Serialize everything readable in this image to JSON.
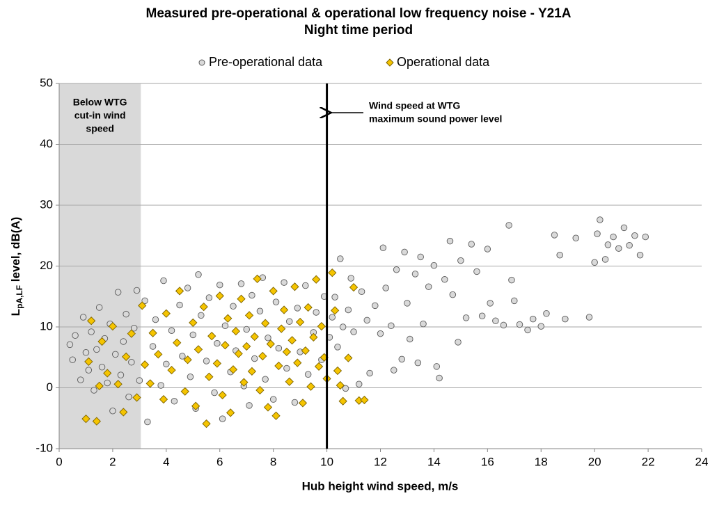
{
  "chart_data": {
    "type": "scatter",
    "title": "Measured pre-operational & operational low frequency noise - Y21A",
    "subtitle": "Night time period",
    "x_label": "Hub height wind speed, m/s",
    "y_label": {
      "main": "L",
      "sub": "pA,LF",
      "rest": " level, dB(A)"
    },
    "xlim": [
      0,
      24
    ],
    "xticks": [
      0,
      2,
      4,
      6,
      8,
      10,
      12,
      14,
      16,
      18,
      20,
      22,
      24
    ],
    "ylim": [
      -10,
      50
    ],
    "yticks": [
      -10,
      0,
      10,
      20,
      30,
      40,
      50
    ],
    "grid": true,
    "legend": "top",
    "shade_x": [
      0,
      3.05
    ],
    "shade_label": [
      "Below WTG",
      "cut-in wind",
      "speed"
    ],
    "vline_x": 10,
    "vline_label": [
      "Wind speed at WTG",
      "maximum sound power level"
    ],
    "series": [
      {
        "name": "Pre-operational data",
        "marker": "circle",
        "color": "#d9d9d9",
        "edge": "#595959",
        "x": [
          0.4,
          0.5,
          0.6,
          0.8,
          0.9,
          1.0,
          1.1,
          1.2,
          1.3,
          1.4,
          1.5,
          1.6,
          1.7,
          1.8,
          1.9,
          2.0,
          2.1,
          2.2,
          2.3,
          2.4,
          2.5,
          2.6,
          2.7,
          2.8,
          2.9,
          3.0,
          3.2,
          3.3,
          3.5,
          3.6,
          3.8,
          3.9,
          4.0,
          4.2,
          4.3,
          4.5,
          4.6,
          4.8,
          4.9,
          5.0,
          5.1,
          5.2,
          5.3,
          5.5,
          5.6,
          5.8,
          5.9,
          6.0,
          6.1,
          6.2,
          6.4,
          6.5,
          6.6,
          6.8,
          6.9,
          7.0,
          7.1,
          7.2,
          7.3,
          7.5,
          7.6,
          7.7,
          7.8,
          8.0,
          8.1,
          8.2,
          8.4,
          8.5,
          8.6,
          8.8,
          8.9,
          9.0,
          9.2,
          9.3,
          9.5,
          9.6,
          9.8,
          9.9,
          10.1,
          10.2,
          10.3,
          10.4,
          10.5,
          10.6,
          10.7,
          10.8,
          10.9,
          11.0,
          11.2,
          11.3,
          11.5,
          11.6,
          11.8,
          12.0,
          12.1,
          12.2,
          12.4,
          12.5,
          12.6,
          12.8,
          12.9,
          13.0,
          13.1,
          13.3,
          13.4,
          13.5,
          13.6,
          13.8,
          14.0,
          14.1,
          14.2,
          14.4,
          14.6,
          14.7,
          14.9,
          15.0,
          15.2,
          15.4,
          15.6,
          15.8,
          16.0,
          16.1,
          16.3,
          16.6,
          16.8,
          16.9,
          17.0,
          17.2,
          17.5,
          17.7,
          18.0,
          18.2,
          18.5,
          18.7,
          18.9,
          19.3,
          19.8,
          20.0,
          20.1,
          20.2,
          20.4,
          20.5,
          20.7,
          20.9,
          21.1,
          21.3,
          21.5,
          21.7,
          21.9
        ],
        "values": [
          7.1,
          4.6,
          8.6,
          1.3,
          11.6,
          5.8,
          2.9,
          9.2,
          -0.4,
          6.3,
          13.2,
          3.4,
          8.1,
          0.8,
          10.5,
          -3.8,
          5.5,
          15.7,
          2.1,
          7.6,
          12.1,
          -1.5,
          4.2,
          9.8,
          16.0,
          1.2,
          14.3,
          -5.6,
          6.8,
          11.2,
          0.4,
          17.6,
          3.9,
          9.4,
          -2.2,
          13.6,
          5.2,
          16.4,
          1.8,
          8.7,
          -3.4,
          18.6,
          11.9,
          4.4,
          14.8,
          -0.8,
          7.3,
          16.9,
          -5.1,
          10.2,
          2.6,
          13.4,
          6.1,
          17.1,
          0.3,
          9.6,
          -2.9,
          15.2,
          4.8,
          12.6,
          18.1,
          1.4,
          8.2,
          -1.9,
          14.1,
          6.5,
          17.3,
          3.2,
          10.9,
          -2.4,
          13.1,
          5.9,
          16.8,
          2.2,
          9.1,
          12.4,
          4.6,
          15.0,
          8.3,
          11.6,
          14.9,
          6.7,
          21.2,
          10.0,
          -0.1,
          12.8,
          18.0,
          9.2,
          0.6,
          15.8,
          11.1,
          2.4,
          13.5,
          8.9,
          23.0,
          16.4,
          10.2,
          2.9,
          19.4,
          4.7,
          22.3,
          13.9,
          8.0,
          18.7,
          4.1,
          21.5,
          10.5,
          16.6,
          20.1,
          3.5,
          1.6,
          17.8,
          24.1,
          15.3,
          7.5,
          20.9,
          11.5,
          23.6,
          19.1,
          11.8,
          22.8,
          13.9,
          11.0,
          10.3,
          26.7,
          17.7,
          14.3,
          10.4,
          9.5,
          11.3,
          10.1,
          12.2,
          25.1,
          21.8,
          11.3,
          24.6,
          11.6,
          20.6,
          25.3,
          27.6,
          21.1,
          23.5,
          24.8,
          22.9,
          26.3,
          23.4,
          25.0,
          21.8,
          24.8
        ]
      },
      {
        "name": "Operational data",
        "marker": "diamond",
        "color": "#f5c400",
        "edge": "#7f6500",
        "x": [
          1.0,
          1.1,
          1.2,
          1.4,
          1.5,
          1.6,
          1.8,
          2.0,
          2.2,
          2.4,
          2.5,
          2.7,
          2.9,
          3.1,
          3.2,
          3.4,
          3.5,
          3.7,
          3.9,
          4.0,
          4.2,
          4.4,
          4.5,
          4.7,
          4.8,
          5.0,
          5.1,
          5.2,
          5.4,
          5.5,
          5.6,
          5.7,
          5.9,
          6.0,
          6.1,
          6.2,
          6.3,
          6.4,
          6.5,
          6.6,
          6.7,
          6.8,
          6.9,
          7.0,
          7.1,
          7.2,
          7.3,
          7.4,
          7.5,
          7.6,
          7.7,
          7.8,
          7.9,
          8.0,
          8.1,
          8.2,
          8.3,
          8.4,
          8.5,
          8.6,
          8.7,
          8.8,
          8.9,
          9.0,
          9.1,
          9.2,
          9.3,
          9.4,
          9.5,
          9.6,
          9.7,
          9.8,
          9.9,
          10.0,
          10.2,
          10.3,
          10.4,
          10.5,
          10.6,
          10.8,
          11.0,
          11.2,
          11.4
        ],
        "values": [
          -5.1,
          4.3,
          11.0,
          -5.5,
          0.3,
          7.6,
          2.4,
          10.1,
          0.6,
          -4.0,
          5.1,
          8.9,
          -1.6,
          13.5,
          3.8,
          0.7,
          9.0,
          5.5,
          -1.9,
          12.2,
          2.9,
          7.4,
          15.9,
          -0.6,
          4.6,
          10.7,
          -3.0,
          6.3,
          13.3,
          -5.9,
          1.8,
          8.5,
          4.0,
          15.1,
          -1.2,
          7.0,
          11.4,
          -4.1,
          3.0,
          9.3,
          5.6,
          14.6,
          0.9,
          6.8,
          11.9,
          2.7,
          8.4,
          17.9,
          -0.4,
          5.2,
          10.6,
          -3.2,
          7.2,
          15.9,
          -4.6,
          3.6,
          9.7,
          12.8,
          5.9,
          1.0,
          7.8,
          16.6,
          4.1,
          10.8,
          -2.5,
          6.1,
          13.2,
          0.2,
          8.3,
          17.8,
          3.5,
          10.1,
          5.0,
          1.5,
          18.9,
          12.7,
          2.8,
          0.4,
          -2.2,
          4.9,
          16.5,
          -2.1,
          -2.0
        ]
      }
    ]
  }
}
